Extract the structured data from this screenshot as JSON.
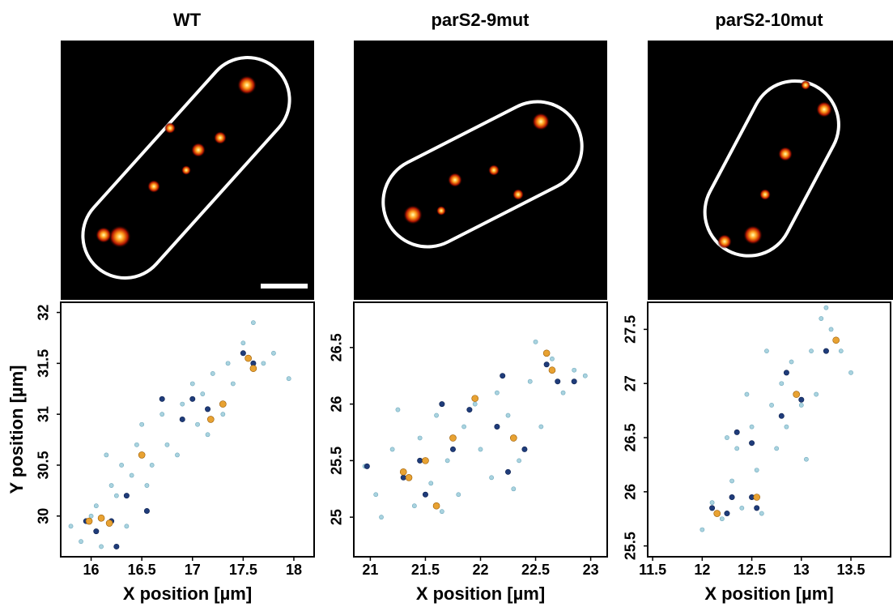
{
  "chart_data": [
    {
      "type": "scatter",
      "title": "WT",
      "xlabel": "X position [µm]",
      "ylabel": "Y position [µm]",
      "xlim": [
        15.7,
        18.2
      ],
      "ylim": [
        29.6,
        32.1
      ],
      "xticks": [
        16,
        16.5,
        17,
        17.5,
        18
      ],
      "yticks": [
        30,
        30.5,
        31,
        31.5,
        32
      ],
      "series": [
        {
          "color": "#a9d3df",
          "x": [
            15.8,
            15.9,
            16.05,
            16.1,
            16.2,
            16.3,
            16.25,
            16.4,
            16.45,
            16.5,
            16.6,
            16.7,
            16.75,
            16.85,
            16.9,
            17.0,
            17.05,
            17.1,
            17.2,
            17.3,
            17.35,
            17.4,
            17.5,
            17.6,
            17.7,
            17.8,
            17.95,
            16.0,
            16.35,
            16.55,
            17.15,
            16.15
          ],
          "y": [
            29.9,
            29.75,
            30.1,
            29.7,
            30.3,
            30.5,
            30.2,
            30.4,
            30.7,
            30.9,
            30.5,
            31.0,
            30.7,
            30.6,
            31.1,
            31.3,
            30.9,
            31.2,
            31.4,
            31.0,
            31.5,
            31.3,
            31.7,
            31.9,
            31.5,
            31.6,
            31.35,
            30.0,
            29.9,
            30.3,
            30.8,
            30.6
          ]
        },
        {
          "color": "#1f3c7a",
          "x": [
            15.95,
            16.05,
            16.2,
            16.25,
            16.5,
            16.35,
            16.55,
            16.9,
            17.0,
            17.15,
            17.3,
            17.5,
            17.6,
            16.7
          ],
          "y": [
            29.95,
            29.85,
            29.95,
            29.7,
            30.6,
            30.2,
            30.05,
            30.95,
            31.15,
            31.05,
            31.1,
            31.6,
            31.5,
            31.15
          ]
        },
        {
          "color": "#e8a232",
          "x": [
            15.98,
            16.1,
            16.18,
            16.5,
            17.18,
            17.3,
            17.55,
            17.6
          ],
          "y": [
            29.95,
            29.98,
            29.93,
            30.6,
            30.95,
            31.1,
            31.55,
            31.45
          ]
        }
      ]
    },
    {
      "type": "scatter",
      "title": "parS2-9mut",
      "xlabel": "X position [µm]",
      "xlim": [
        20.85,
        23.15
      ],
      "ylim": [
        24.65,
        26.9
      ],
      "xticks": [
        21,
        21.5,
        22,
        22.5,
        23
      ],
      "yticks": [
        25,
        25.5,
        26,
        26.5
      ],
      "series": [
        {
          "color": "#a9d3df",
          "x": [
            20.95,
            21.05,
            21.1,
            21.2,
            21.3,
            21.4,
            21.45,
            21.55,
            21.6,
            21.7,
            21.8,
            21.85,
            21.95,
            22.0,
            22.1,
            22.15,
            22.25,
            22.35,
            22.45,
            22.55,
            22.65,
            22.75,
            22.85,
            22.95,
            21.25,
            22.5,
            21.65,
            22.3
          ],
          "y": [
            25.45,
            25.2,
            25.0,
            25.6,
            25.4,
            25.1,
            25.7,
            25.3,
            25.9,
            25.5,
            25.2,
            25.8,
            26.0,
            25.6,
            25.35,
            26.1,
            25.9,
            25.5,
            26.2,
            25.8,
            26.4,
            26.1,
            26.3,
            26.25,
            25.95,
            26.55,
            25.05,
            25.25
          ]
        },
        {
          "color": "#1f3c7a",
          "x": [
            20.97,
            21.3,
            21.45,
            21.5,
            21.75,
            21.9,
            22.15,
            22.25,
            22.4,
            22.6,
            22.7,
            22.2,
            21.65,
            22.85
          ],
          "y": [
            25.45,
            25.35,
            25.5,
            25.2,
            25.6,
            25.95,
            25.8,
            25.4,
            25.6,
            26.35,
            26.2,
            26.25,
            26.0,
            26.2
          ]
        },
        {
          "color": "#e8a232",
          "x": [
            21.3,
            21.35,
            21.5,
            21.6,
            21.75,
            22.3,
            22.65,
            21.95,
            22.6
          ],
          "y": [
            25.4,
            25.35,
            25.5,
            25.1,
            25.7,
            25.7,
            26.3,
            26.05,
            26.45
          ]
        }
      ]
    },
    {
      "type": "scatter",
      "title": "parS2-10mut",
      "xlabel": "X position [µm]",
      "xlim": [
        11.45,
        13.9
      ],
      "ylim": [
        25.4,
        27.75
      ],
      "xticks": [
        11.5,
        12,
        12.5,
        13,
        13.5
      ],
      "yticks": [
        25.5,
        26,
        26.5,
        27,
        27.5
      ],
      "series": [
        {
          "color": "#a9d3df",
          "x": [
            12.0,
            12.1,
            12.2,
            12.3,
            12.35,
            12.4,
            12.5,
            12.55,
            12.6,
            12.7,
            12.75,
            12.8,
            12.85,
            12.9,
            13.0,
            13.1,
            13.15,
            13.2,
            13.3,
            13.4,
            13.5,
            12.45,
            13.05,
            12.65,
            12.25,
            13.25
          ],
          "y": [
            25.65,
            25.9,
            25.75,
            26.1,
            26.4,
            25.85,
            26.6,
            26.2,
            25.8,
            26.8,
            26.4,
            27.0,
            26.6,
            27.2,
            26.8,
            27.3,
            26.9,
            27.6,
            27.5,
            27.3,
            27.1,
            26.9,
            26.3,
            27.3,
            26.5,
            27.7
          ]
        },
        {
          "color": "#1f3c7a",
          "x": [
            12.1,
            12.25,
            12.3,
            12.5,
            12.55,
            12.35,
            12.5,
            12.8,
            12.95,
            13.0,
            13.25,
            13.35,
            12.85
          ],
          "y": [
            25.85,
            25.8,
            25.95,
            25.95,
            25.85,
            26.55,
            26.45,
            26.7,
            26.9,
            26.85,
            27.3,
            27.4,
            27.1
          ]
        },
        {
          "color": "#e8a232",
          "x": [
            12.15,
            12.55,
            12.95,
            13.35
          ],
          "y": [
            25.8,
            25.95,
            26.9,
            27.4
          ]
        }
      ]
    }
  ]
}
